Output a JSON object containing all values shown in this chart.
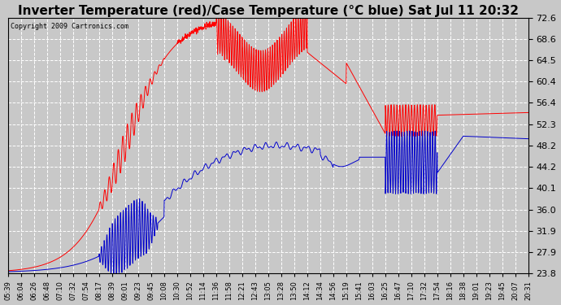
{
  "title": "Inverter Temperature (red)/Case Temperature (°C blue) Sat Jul 11 20:32",
  "copyright": "Copyright 2009 Cartronics.com",
  "yticks": [
    23.8,
    27.9,
    31.9,
    36.0,
    40.1,
    44.2,
    48.2,
    52.3,
    56.4,
    60.4,
    64.5,
    68.6,
    72.6
  ],
  "ymin": 23.8,
  "ymax": 72.6,
  "background_color": "#c8c8c8",
  "plot_bg_color": "#c8c8c8",
  "grid_color": "#ffffff",
  "red_color": "#ff0000",
  "blue_color": "#0000cc",
  "title_fontsize": 11,
  "x_labels": [
    "05:39",
    "06:04",
    "06:26",
    "06:48",
    "07:10",
    "07:32",
    "07:54",
    "08:17",
    "08:39",
    "09:01",
    "09:23",
    "09:45",
    "10:08",
    "10:30",
    "10:52",
    "11:14",
    "11:36",
    "11:58",
    "12:21",
    "12:43",
    "13:05",
    "13:28",
    "13:50",
    "14:12",
    "14:34",
    "14:56",
    "15:19",
    "15:41",
    "16:03",
    "16:25",
    "16:47",
    "17:10",
    "17:32",
    "17:54",
    "18:16",
    "18:38",
    "19:01",
    "19:23",
    "19:45",
    "20:07",
    "20:31"
  ]
}
